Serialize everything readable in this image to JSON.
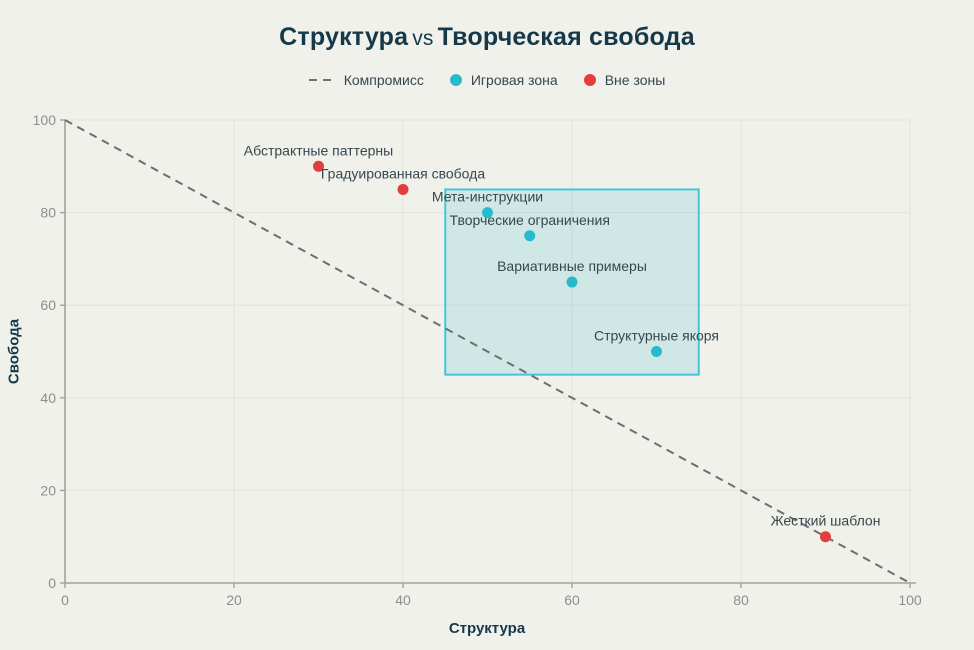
{
  "title": {
    "part1": "Структура",
    "vs": "vs",
    "part2": "Творческая свобода"
  },
  "legend": [
    {
      "label": "Компромисс",
      "marker": "dashed-line",
      "color": "#6e6e6e"
    },
    {
      "label": "Игровая зона",
      "marker": "dot",
      "color": "#29b9cd"
    },
    {
      "label": "Вне зоны",
      "marker": "dot",
      "color": "#e23e3e"
    }
  ],
  "axes": {
    "x_label": "Структура",
    "y_label": "Свобода",
    "x_ticks": [
      0,
      20,
      40,
      60,
      80,
      100
    ],
    "y_ticks": [
      0,
      20,
      40,
      60,
      80,
      100
    ]
  },
  "chart_data": {
    "type": "scatter",
    "title": "Структура vs Творческая свобода",
    "xlabel": "Структура",
    "ylabel": "Свобода",
    "xlim": [
      0,
      100
    ],
    "ylim": [
      0,
      100
    ],
    "grid": true,
    "legend_position": "top-center",
    "series": [
      {
        "name": "Игровая зона",
        "color": "#29b9cd",
        "points": [
          {
            "label": "Мета-инструкции",
            "x": 50,
            "y": 80
          },
          {
            "label": "Творческие ограничения",
            "x": 55,
            "y": 75
          },
          {
            "label": "Вариативные примеры",
            "x": 60,
            "y": 65
          },
          {
            "label": "Структурные якоря",
            "x": 70,
            "y": 50
          }
        ]
      },
      {
        "name": "Вне зоны",
        "color": "#e23e3e",
        "points": [
          {
            "label": "Абстрактные паттерны",
            "x": 30,
            "y": 90
          },
          {
            "label": "Градуированная свобода",
            "x": 40,
            "y": 85
          },
          {
            "label": "Жесткий шаблон",
            "x": 90,
            "y": 10
          }
        ]
      }
    ],
    "reference_line": {
      "name": "Компромисс",
      "style": "dashed",
      "color": "#6e6e6e",
      "from": [
        0,
        100
      ],
      "to": [
        100,
        0
      ]
    },
    "zone": {
      "name": "Игровая зона",
      "x0": 45,
      "x1": 75,
      "y0": 45,
      "y1": 85,
      "fill": "rgba(41,185,205,0.16)",
      "border": "#45c6d6"
    }
  },
  "colors": {
    "background": "#f0f1ea",
    "title_text": "#16394a",
    "label_text": "#374750",
    "tick_text": "#8e8e8e",
    "grid": "#e2e3db",
    "axis": "#a3a39c"
  }
}
